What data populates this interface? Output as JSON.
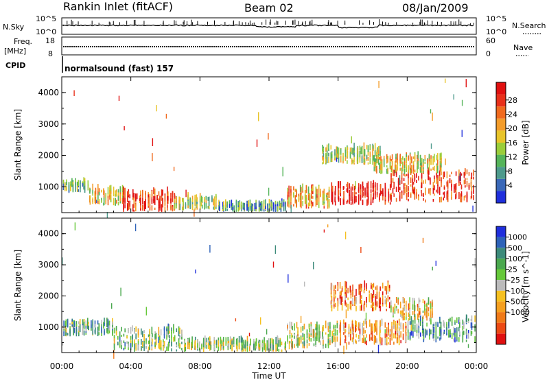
{
  "header": {
    "station": "Rankin Inlet (fitACF)",
    "beam": "Beam 02",
    "date": "08/Jan/2009"
  },
  "strip_panels": {
    "nsky_label": "N.Sky",
    "nsky_ticks": [
      "10^5",
      "10^0"
    ],
    "nsearch_label": "N.Search",
    "nsearch_ticks": [
      "10^5",
      "10^0"
    ],
    "freq_label": "Freq.",
    "freq_unit": "[MHz]",
    "freq_ticks": [
      "18",
      "8"
    ],
    "nave_label": "Nave",
    "nave_ticks": [
      "60",
      "0"
    ],
    "cpid_label": "CPID",
    "cpid_text": "normalsound (fast) 157"
  },
  "chart_data": [
    {
      "type": "heatmap",
      "quantity": "power",
      "ylabel": "Slant Range [km]",
      "ylim": [
        180,
        4500
      ],
      "yticks": [
        "1000",
        "2000",
        "3000",
        "4000"
      ],
      "xlim_hours": [
        0,
        24
      ],
      "colorbar": {
        "label": "Power [dB]",
        "ticks": [
          "4",
          "8",
          "12",
          "16",
          "20",
          "24",
          "28"
        ],
        "colors": [
          "#1f2fdc",
          "#3a68b8",
          "#4d9a8c",
          "#55b45a",
          "#9acd3a",
          "#e8c42a",
          "#f39c2a",
          "#f06a1e",
          "#e8301a",
          "#e01010"
        ]
      },
      "echo_regions": [
        {
          "t0": 0.0,
          "t1": 1.5,
          "r0": 800,
          "r1": 1100,
          "level": 0.35
        },
        {
          "t0": 1.5,
          "t1": 3.5,
          "r0": 400,
          "r1": 900,
          "level": 0.55
        },
        {
          "t0": 3.5,
          "t1": 6.5,
          "r0": 200,
          "r1": 800,
          "level": 0.9
        },
        {
          "t0": 6.5,
          "t1": 9.0,
          "r0": 250,
          "r1": 600,
          "level": 0.45
        },
        {
          "t0": 9.0,
          "t1": 13.0,
          "r0": 200,
          "r1": 400,
          "level": 0.3
        },
        {
          "t0": 13.0,
          "t1": 15.5,
          "r0": 300,
          "r1": 900,
          "level": 0.6
        },
        {
          "t0": 15.5,
          "t1": 19.0,
          "r0": 400,
          "r1": 1000,
          "level": 0.95
        },
        {
          "t0": 19.0,
          "t1": 23.9,
          "r0": 500,
          "r1": 1400,
          "level": 0.85
        },
        {
          "t0": 15.0,
          "t1": 18.5,
          "r0": 1700,
          "r1": 2200,
          "level": 0.45
        },
        {
          "t0": 18.0,
          "t1": 22.0,
          "r0": 1400,
          "r1": 1900,
          "level": 0.55
        }
      ]
    },
    {
      "type": "heatmap",
      "quantity": "velocity",
      "ylabel": "Slant Range [km]",
      "ylim": [
        180,
        4500
      ],
      "yticks": [
        "1000",
        "2000",
        "3000",
        "4000"
      ],
      "xlim_hours": [
        0,
        24
      ],
      "xlabel": "Time UT",
      "xticks": [
        "00:00",
        "04:00",
        "08:00",
        "12:00",
        "16:00",
        "20:00",
        "00:00"
      ],
      "colorbar": {
        "label": "Velocity [m s^-1]",
        "ticks": [
          "1000",
          "500",
          "100",
          "25",
          "-25",
          "-100",
          "-500",
          "-1000"
        ],
        "colors": [
          "#1f2fdc",
          "#2d62b8",
          "#3c8a7a",
          "#4aa84e",
          "#66c83a",
          "#bbbbbb",
          "#f5c020",
          "#f5a020",
          "#f07a18",
          "#ec4a14",
          "#e01010"
        ]
      },
      "echo_regions": [
        {
          "t0": 0.0,
          "t1": 3.0,
          "r0": 700,
          "r1": 1100,
          "level": 0.35
        },
        {
          "t0": 3.0,
          "t1": 7.0,
          "r0": 200,
          "r1": 900,
          "level": 0.4
        },
        {
          "t0": 7.0,
          "t1": 13.0,
          "r0": 200,
          "r1": 500,
          "level": 0.45
        },
        {
          "t0": 13.0,
          "t1": 16.0,
          "r0": 300,
          "r1": 1000,
          "level": 0.5
        },
        {
          "t0": 16.0,
          "t1": 20.0,
          "r0": 400,
          "r1": 1100,
          "level": 0.7
        },
        {
          "t0": 20.0,
          "t1": 23.9,
          "r0": 500,
          "r1": 1200,
          "level": 0.3
        },
        {
          "t0": 15.5,
          "t1": 19.0,
          "r0": 1500,
          "r1": 2300,
          "level": 0.75
        },
        {
          "t0": 19.0,
          "t1": 21.5,
          "r0": 1200,
          "r1": 1800,
          "level": 0.6
        }
      ]
    }
  ]
}
